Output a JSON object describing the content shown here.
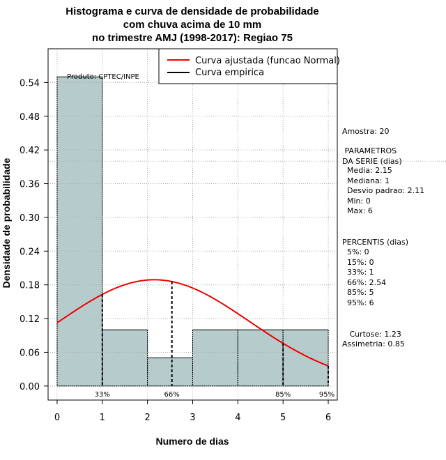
{
  "chart_data": {
    "type": "bar",
    "title_lines": [
      "Histograma e curva de densidade de probabilidade",
      "com chuva acima de 10 mm",
      "no trimestre AMJ (1998-2017): Regiao 75"
    ],
    "xlabel": "Numero de dias",
    "ylabel": "Densidade de probabilidade",
    "xlim": [
      -0.2,
      6.2
    ],
    "ylim": [
      -0.025,
      0.6
    ],
    "xticks": [
      0,
      1,
      2,
      3,
      4,
      5,
      6
    ],
    "xtick_labels": [
      "0",
      "1",
      "2",
      "3",
      "4",
      "5",
      "6"
    ],
    "yticks": [
      0.0,
      0.06,
      0.12,
      0.18,
      0.24,
      0.3,
      0.36,
      0.42,
      0.48,
      0.54
    ],
    "ytick_labels": [
      "0.00",
      "0.06",
      "0.12",
      "0.18",
      "0.24",
      "0.30",
      "0.36",
      "0.42",
      "0.48",
      "0.54"
    ],
    "hline": 0.4,
    "bins": [
      {
        "x0": 0,
        "x1": 1,
        "density": 0.55
      },
      {
        "x0": 1,
        "x1": 2,
        "density": 0.1
      },
      {
        "x0": 2,
        "x1": 3,
        "density": 0.05
      },
      {
        "x0": 3,
        "x1": 4,
        "density": 0.1
      },
      {
        "x0": 4,
        "x1": 5,
        "density": 0.1
      },
      {
        "x0": 5,
        "x1": 6,
        "density": 0.1
      }
    ],
    "normal_fit": {
      "mean": 2.15,
      "sd": 2.11
    },
    "percentile_markers": [
      {
        "label": "33%",
        "x": 1
      },
      {
        "label": "66%",
        "x": 2.54
      },
      {
        "label": "85%",
        "x": 5
      },
      {
        "label": "95%",
        "x": 6
      }
    ],
    "product_label": "Produto: CPTEC/INPE",
    "legend": [
      {
        "label": "Curva ajustada (funcao Normal)",
        "color": "#ee0000"
      },
      {
        "label": "Curva empirica",
        "color": "#000000"
      }
    ],
    "bar_color": "#b6cccc"
  },
  "stats": {
    "amostra": "Amostra: 20",
    "parametros_title": " PARAMETROS\nDA SERIE (dias)",
    "parametros": "  Media: 2.15\n  Mediana: 1\n  Desvio padrao: 2.11\n  Min: 0\n  Max: 6",
    "percentis_title": "PERCENTIS (dias)",
    "percentis": "  5%: 0\n  15%: 0\n  33%: 1\n  66%: 2.54\n  85%: 5\n  95%: 6",
    "curtose": "   Curtose: 1.23",
    "assimetria": "Assimetria: 0.85"
  }
}
